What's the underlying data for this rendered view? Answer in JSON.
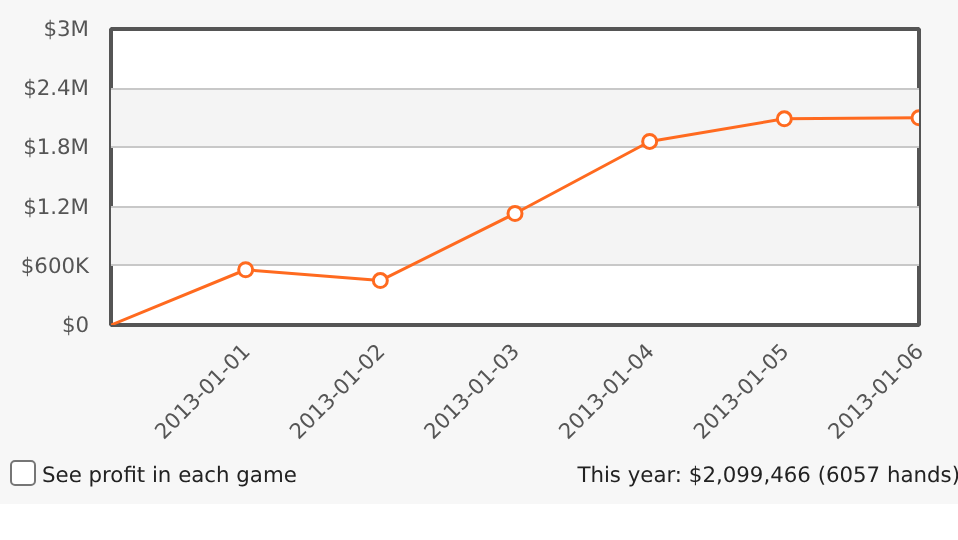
{
  "chart_data": {
    "type": "line",
    "categories": [
      null,
      "2013-01-01",
      "2013-01-02",
      "2013-01-03",
      "2013-01-04",
      "2013-01-05",
      "2013-01-06"
    ],
    "series": [
      {
        "color": "#ff6a1f",
        "values": [
          0,
          560000,
          450000,
          1130000,
          1860000,
          2090000,
          2099466
        ]
      }
    ],
    "ylim": [
      0,
      3000000
    ],
    "yticks": [
      {
        "value": 0,
        "label": "$0"
      },
      {
        "value": 600000,
        "label": "$600K"
      },
      {
        "value": 1200000,
        "label": "$1.2M"
      },
      {
        "value": 1800000,
        "label": "$1.8M"
      },
      {
        "value": 2400000,
        "label": "$2.4M"
      },
      {
        "value": 3000000,
        "label": "$3M"
      }
    ],
    "grid": "y",
    "marker": "circle",
    "line_style": "solid",
    "annotations": [
      "See profit in each game",
      "This year: $2,099,466 (6057 hands)"
    ]
  }
}
